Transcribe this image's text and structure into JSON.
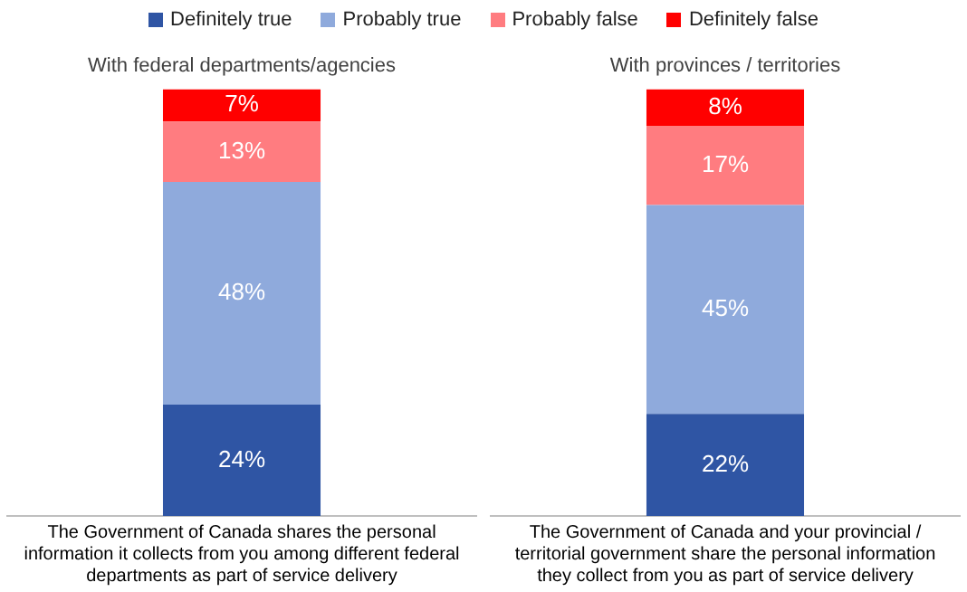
{
  "chart_data": [
    {
      "type": "bar",
      "title": "With federal departments/agencies",
      "stacked": true,
      "legend": "top",
      "grid": false,
      "categories": [
        "The Government of Canada shares the personal information it collects from you among different federal departments as part of service delivery"
      ],
      "series": [
        {
          "name": "Definitely true",
          "color": "#2f55a4",
          "values": [
            24
          ],
          "value_labels": [
            "24%"
          ]
        },
        {
          "name": "Probably true",
          "color": "#8faadc",
          "values": [
            48
          ],
          "value_labels": [
            "48%"
          ]
        },
        {
          "name": "Probably false",
          "color": "#ff7c80",
          "values": [
            13
          ],
          "value_labels": [
            "13%"
          ]
        },
        {
          "name": "Definitely false",
          "color": "#ff0000",
          "values": [
            7
          ],
          "value_labels": [
            "7%"
          ]
        }
      ]
    },
    {
      "type": "bar",
      "title": "With provinces / territories",
      "stacked": true,
      "legend": false,
      "grid": false,
      "categories": [
        "The Government of Canada and your provincial / territorial government share the personal information they collect from you as part of service delivery"
      ],
      "series": [
        {
          "color": "#2f55a4",
          "values": [
            22
          ],
          "value_labels": [
            "22%"
          ]
        },
        {
          "color": "#8faadc",
          "values": [
            45
          ],
          "value_labels": [
            "45%"
          ]
        },
        {
          "color": "#ff7c80",
          "values": [
            17
          ],
          "value_labels": [
            "17%"
          ]
        },
        {
          "color": "#ff0000",
          "values": [
            8
          ],
          "value_labels": [
            "8%"
          ]
        }
      ]
    }
  ]
}
